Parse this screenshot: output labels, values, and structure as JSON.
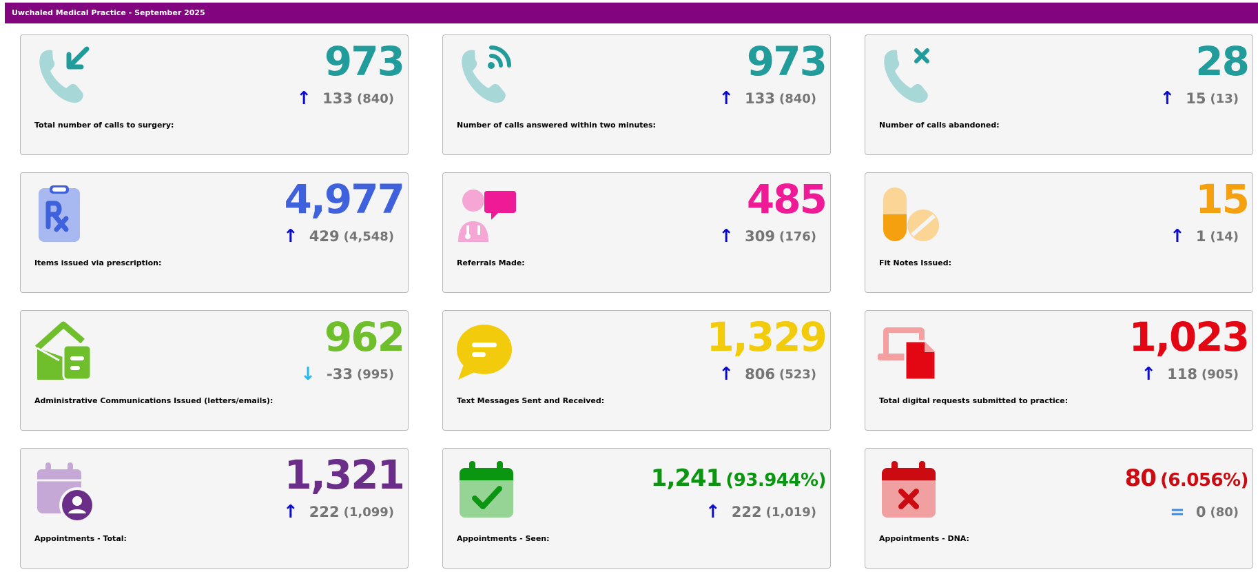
{
  "header": {
    "title": "Uwchaled Medical Practice - September 2025"
  },
  "cards": [
    {
      "value": "973",
      "change": "133",
      "previous": "(840)",
      "direction": "up",
      "label": "Total number of calls to surgery:",
      "color": "#229b9b",
      "icon": "phone-incoming-icon"
    },
    {
      "value": "973",
      "change": "133",
      "previous": "(840)",
      "direction": "up",
      "label": "Number of calls answered within two minutes:",
      "color": "#229b9b",
      "icon": "phone-answered-icon"
    },
    {
      "value": "28",
      "change": "15",
      "previous": "(13)",
      "direction": "up",
      "label": "Number of calls abandoned:",
      "color": "#229b9b",
      "icon": "phone-missed-icon"
    },
    {
      "value": "4,977",
      "change": "429",
      "previous": "(4,548)",
      "direction": "up",
      "label": "Items issued via prescription:",
      "color": "#3f62dc",
      "icon": "prescription-icon"
    },
    {
      "value": "485",
      "change": "309",
      "previous": "(176)",
      "direction": "up",
      "label": "Referrals Made:",
      "color": "#ef1a96",
      "icon": "doctor-referral-icon"
    },
    {
      "value": "15",
      "change": "1",
      "previous": "(14)",
      "direction": "up",
      "label": "Fit Notes Issued:",
      "color": "#f5a00f",
      "icon": "pills-icon"
    },
    {
      "value": "962",
      "change": "-33",
      "previous": "(995)",
      "direction": "down",
      "label": "Administrative Communications Issued (letters/emails):",
      "color": "#6fbe2b",
      "icon": "envelope-open-icon"
    },
    {
      "value": "1,329",
      "change": "806",
      "previous": "(523)",
      "direction": "up",
      "label": "Text Messages Sent and Received:",
      "color": "#f2cc0c",
      "icon": "message-icon"
    },
    {
      "value": "1,023",
      "change": "118",
      "previous": "(905)",
      "direction": "up",
      "label": "Total digital requests submitted to practice:",
      "color": "#e30613",
      "icon": "digital-request-icon"
    },
    {
      "value": "1,321",
      "change": "222",
      "previous": "(1,099)",
      "direction": "up",
      "label": "Appointments - Total:",
      "color": "#6a2e88",
      "icon": "calendar-user-icon"
    },
    {
      "value": "1,241",
      "percent": "(93.944%)",
      "change": "222",
      "previous": "(1,019)",
      "direction": "up",
      "label": "Appointments - Seen:",
      "color": "#0b9611",
      "icon": "calendar-check-icon"
    },
    {
      "value": "80",
      "percent": "(6.056%)",
      "change": "0",
      "previous": "(80)",
      "direction": "equal",
      "label": "Appointments - DNA:",
      "color": "#cc0a12",
      "icon": "calendar-x-icon"
    }
  ],
  "arrow_colors": {
    "up": "#0c0ccc",
    "down": "#29b8e8",
    "equal": "#3d8be0"
  },
  "arrow_glyphs": {
    "up": "↑",
    "down": "↓",
    "equal": "="
  }
}
